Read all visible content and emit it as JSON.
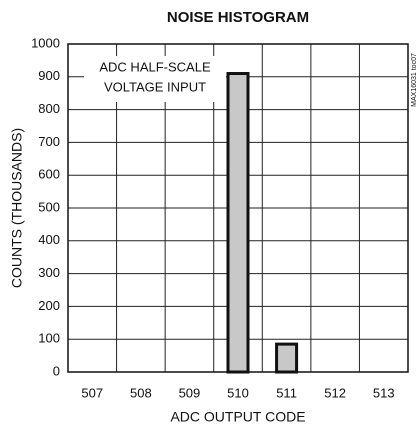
{
  "chart_data": {
    "type": "bar",
    "title": "NOISE HISTOGRAM",
    "x_label": "ADC OUTPUT CODE",
    "y_label": "COUNTS (THOUSANDS)",
    "annotation": [
      "ADC HALF-SCALE",
      "VOLTAGE INPUT"
    ],
    "side_note": "MAX16031 toc07",
    "categories": [
      "507",
      "508",
      "509",
      "510",
      "511",
      "512",
      "513"
    ],
    "values": [
      0,
      0,
      0,
      910,
      85,
      0,
      0
    ],
    "color": "#c8c8c8",
    "ylim": [
      0,
      1000
    ],
    "yticks": [
      0,
      100,
      200,
      300,
      400,
      500,
      600,
      700,
      800,
      900,
      1000
    ],
    "grid": true
  }
}
